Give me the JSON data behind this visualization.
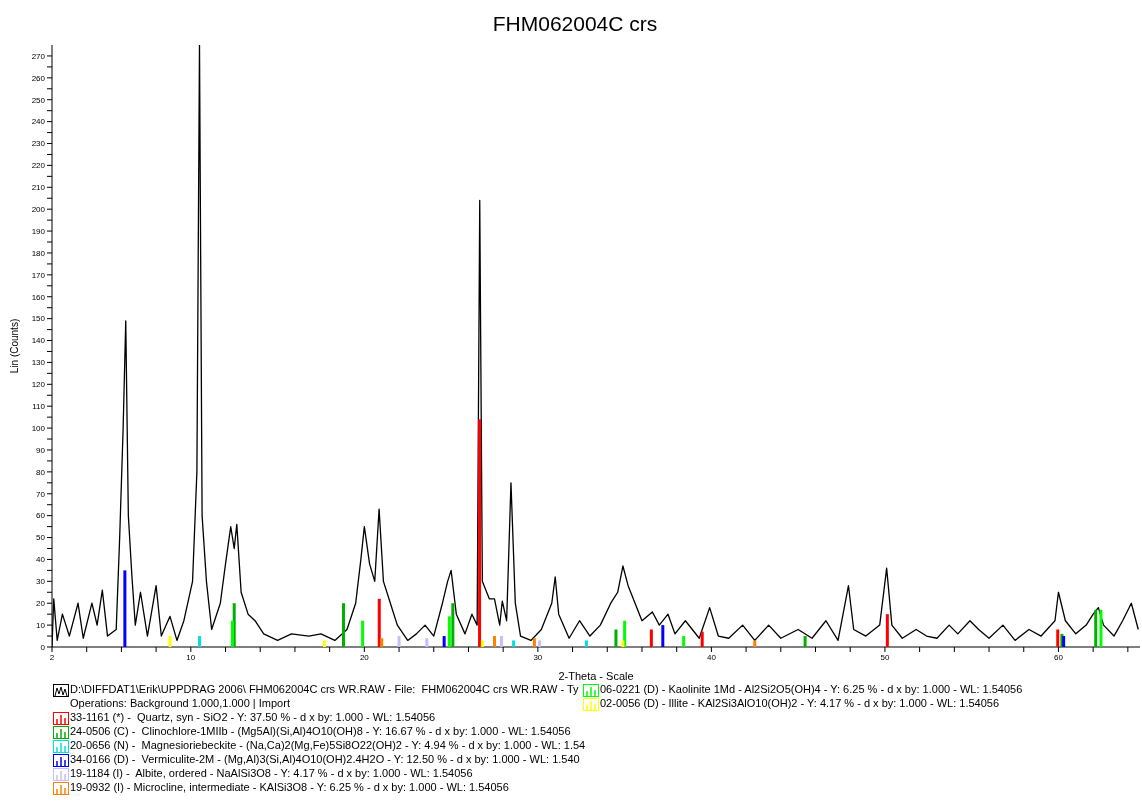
{
  "chart_data": {
    "type": "line",
    "title": "FHM062004C crs",
    "xlabel": "2-Theta - Scale",
    "ylabel": "Lin (Counts)",
    "xlim": [
      2,
      64.7
    ],
    "ylim": [
      0,
      275
    ],
    "xticks": [
      2,
      {
        "value": 4,
        "label": null
      },
      {
        "value": 6,
        "label": null
      },
      {
        "value": 8,
        "label": null
      },
      10,
      {
        "value": 12,
        "label": null
      },
      {
        "value": 14,
        "label": null
      },
      {
        "value": 16,
        "label": null
      },
      {
        "value": 18,
        "label": null
      },
      20,
      {
        "value": 22,
        "label": null
      },
      {
        "value": 24,
        "label": null
      },
      {
        "value": 26,
        "label": null
      },
      {
        "value": 28,
        "label": null
      },
      30,
      {
        "value": 32,
        "label": null
      },
      {
        "value": 34,
        "label": null
      },
      {
        "value": 36,
        "label": null
      },
      {
        "value": 38,
        "label": null
      },
      40,
      {
        "value": 42,
        "label": null
      },
      {
        "value": 44,
        "label": null
      },
      {
        "value": 46,
        "label": null
      },
      {
        "value": 48,
        "label": null
      },
      50,
      {
        "value": 52,
        "label": null
      },
      {
        "value": 54,
        "label": null
      },
      {
        "value": 56,
        "label": null
      },
      {
        "value": 58,
        "label": null
      },
      60,
      {
        "value": 62,
        "label": null
      },
      {
        "value": 64,
        "label": null
      }
    ],
    "yticks": [
      0,
      {
        "value": 5,
        "label": null
      },
      10,
      {
        "value": 15,
        "label": null
      },
      20,
      {
        "value": 25,
        "label": null
      },
      30,
      {
        "value": 35,
        "label": null
      },
      40,
      {
        "value": 45,
        "label": null
      },
      50,
      {
        "value": 55,
        "label": null
      },
      60,
      {
        "value": 65,
        "label": null
      },
      70,
      {
        "value": 75,
        "label": null
      },
      80,
      {
        "value": 85,
        "label": null
      },
      90,
      {
        "value": 95,
        "label": null
      },
      100,
      {
        "value": 105,
        "label": null
      },
      110,
      {
        "value": 115,
        "label": null
      },
      120,
      {
        "value": 125,
        "label": null
      },
      130,
      {
        "value": 135,
        "label": null
      },
      140,
      {
        "value": 145,
        "label": null
      },
      150,
      {
        "value": 155,
        "label": null
      },
      160,
      {
        "value": 165,
        "label": null
      },
      170,
      {
        "value": 175,
        "label": null
      },
      180,
      {
        "value": 185,
        "label": null
      },
      190,
      {
        "value": 195,
        "label": null
      },
      200,
      {
        "value": 205,
        "label": null
      },
      210,
      {
        "value": 215,
        "label": null
      },
      220,
      {
        "value": 225,
        "label": null
      },
      230,
      {
        "value": 235,
        "label": null
      },
      240,
      {
        "value": 245,
        "label": null
      },
      250,
      {
        "value": 255,
        "label": null
      },
      260,
      {
        "value": 265,
        "label": null
      },
      270
    ],
    "legend": "bottom",
    "marker": "none",
    "line_style": "solid",
    "annotations": [
      "Operations: Background 1.000,1.000 | Import"
    ],
    "series": [
      {
        "name": "D:\\DIFFDAT1\\Erik\\UPPDRAG 2006\\ FHM062004C crs WR.RAW - File:  FHM062004C crs WR.RAW - Ty",
        "color": "#000000",
        "x": [
          2.0,
          2.1,
          2.3,
          2.6,
          3.0,
          3.5,
          3.8,
          4.3,
          4.6,
          4.9,
          5.2,
          5.7,
          5.9,
          6.1,
          6.25,
          6.4,
          6.6,
          6.8,
          7.1,
          7.5,
          8.0,
          8.3,
          8.8,
          9.2,
          9.6,
          10.1,
          10.35,
          10.5,
          10.65,
          10.9,
          11.2,
          11.7,
          12.0,
          12.3,
          12.5,
          12.65,
          12.9,
          13.3,
          13.7,
          14.2,
          15.0,
          15.8,
          16.8,
          17.5,
          18.3,
          19.0,
          19.5,
          19.8,
          20.0,
          20.3,
          20.6,
          20.85,
          21.1,
          21.5,
          21.9,
          22.5,
          23.0,
          23.5,
          24.0,
          24.5,
          24.8,
          25.0,
          25.3,
          25.8,
          26.2,
          26.5,
          26.65,
          26.8,
          27.2,
          27.5,
          27.8,
          27.95,
          28.2,
          28.45,
          28.7,
          29.0,
          29.6,
          30.2,
          30.8,
          31.0,
          31.2,
          31.8,
          32.4,
          33.0,
          33.6,
          34.2,
          34.6,
          34.9,
          35.2,
          35.6,
          36.0,
          36.6,
          37.0,
          37.5,
          37.9,
          38.5,
          39.3,
          39.9,
          40.4,
          41.0,
          41.8,
          42.5,
          43.3,
          44.0,
          45.0,
          45.8,
          46.6,
          47.3,
          47.9,
          48.2,
          48.9,
          49.7,
          50.1,
          50.4,
          51.0,
          51.8,
          52.4,
          53.0,
          53.7,
          54.2,
          54.9,
          55.4,
          56.0,
          56.8,
          57.5,
          58.3,
          59.0,
          59.8,
          60.0,
          60.4,
          61.0,
          61.6,
          62.0,
          62.3,
          62.6,
          63.2,
          63.7,
          64.2,
          64.6
        ],
        "values": [
          0,
          22,
          3,
          15,
          5,
          20,
          4,
          20,
          10,
          26,
          5,
          8,
          50,
          100,
          149,
          60,
          33,
          10,
          25,
          5,
          28,
          5,
          14,
          3,
          12,
          30,
          80,
          275,
          60,
          30,
          8,
          20,
          38,
          55,
          45,
          56,
          25,
          15,
          12,
          6,
          3,
          6,
          5,
          6,
          3,
          8,
          20,
          40,
          55,
          38,
          30,
          63,
          30,
          20,
          10,
          3,
          6,
          10,
          5,
          20,
          30,
          35,
          15,
          6,
          15,
          10,
          204,
          30,
          22,
          22,
          10,
          21,
          12,
          75,
          20,
          5,
          3,
          8,
          20,
          32,
          15,
          4,
          12,
          5,
          10,
          20,
          25,
          37,
          28,
          20,
          12,
          16,
          10,
          15,
          6,
          12,
          4,
          18,
          5,
          4,
          10,
          3,
          10,
          4,
          8,
          4,
          12,
          3,
          28,
          8,
          5,
          10,
          36,
          10,
          4,
          8,
          5,
          4,
          10,
          6,
          12,
          8,
          4,
          10,
          3,
          8,
          5,
          12,
          25,
          12,
          6,
          10,
          15,
          18,
          10,
          5,
          12,
          20,
          8
        ]
      },
      {
        "type": "bar",
        "name": "33-1161 (*) -  Quartz, syn - SiO2 - Y: 37.50 % - d x by: 1.000 - WL: 1.54056",
        "color": "#ff0000",
        "x": [
          20.86,
          26.64,
          36.54,
          39.47,
          50.14,
          59.96
        ],
        "values": [
          22,
          104,
          8,
          7,
          15,
          8
        ]
      },
      {
        "type": "bar",
        "name": "24-0506 (C) -  Clinochlore-1MIIb - (Mg5Al)(Si,Al)4O10(OH)8 - Y: 16.67 % - d x by: 1.000 - WL: 1.54056",
        "color": "#00b000",
        "x": [
          12.5,
          18.8,
          25.1,
          34.5,
          45.4,
          60.2,
          62.15
        ],
        "values": [
          20,
          20,
          20,
          8,
          5,
          6,
          17
        ]
      },
      {
        "type": "bar",
        "name": "20-0656 (N) -  Magnesioriebeckite - (Na,Ca)2(Mg,Fe)5Si8O22(OH)2 - Y: 4.94 % - d x by: 1.000 - WL: 1.54",
        "color": "#00e0e0",
        "x": [
          10.5,
          28.6,
          32.8
        ],
        "values": [
          5,
          3,
          3
        ]
      },
      {
        "type": "bar",
        "name": "34-0166 (D) -  Vermiculite-2M - (Mg,Al)3(Si,Al)4O10(OH)2.4H2O - Y: 12.50 % - d x by: 1.000 - WL: 1.540",
        "color": "#0000ff",
        "x": [
          6.2,
          24.6,
          37.2,
          60.3
        ],
        "values": [
          35,
          5,
          10,
          5
        ]
      },
      {
        "type": "bar",
        "name": "19-1184 (I) -  Albite, ordered - NaAlSi3O8 - Y: 4.17 % - d x by: 1.000 - WL: 1.54056",
        "color": "#c0c0ff",
        "x": [
          22.0,
          23.6,
          27.9,
          30.1
        ],
        "values": [
          5,
          4,
          5,
          3
        ]
      },
      {
        "type": "bar",
        "name": "19-0932 (I) - Microcline, intermediate - KAlSi3O8 - Y: 6.25 % - d x by: 1.000 - WL: 1.54056",
        "color": "#ff8000",
        "x": [
          21.0,
          27.5,
          29.8,
          42.5
        ],
        "values": [
          4,
          5,
          4,
          3
        ]
      },
      {
        "type": "bar",
        "name": "06-0221 (D) - Kaolinite 1Md - Al2Si2O5(OH)4 - Y: 6.25 % - d x by: 1.000 - WL: 1.54056",
        "color": "#00ff00",
        "x": [
          12.4,
          19.9,
          24.9,
          35.0,
          38.4,
          62.45
        ],
        "values": [
          12,
          12,
          14,
          12,
          5,
          17
        ]
      },
      {
        "type": "bar",
        "name": "02-0056 (D) - Illite - KAl2Si3AlO10(OH)2 - Y: 4.17 % - d x by: 1.000 - WL: 1.54056",
        "color": "#ffff00",
        "x": [
          8.8,
          17.7,
          26.8,
          34.9
        ],
        "values": [
          5,
          3,
          3,
          3
        ]
      }
    ]
  }
}
